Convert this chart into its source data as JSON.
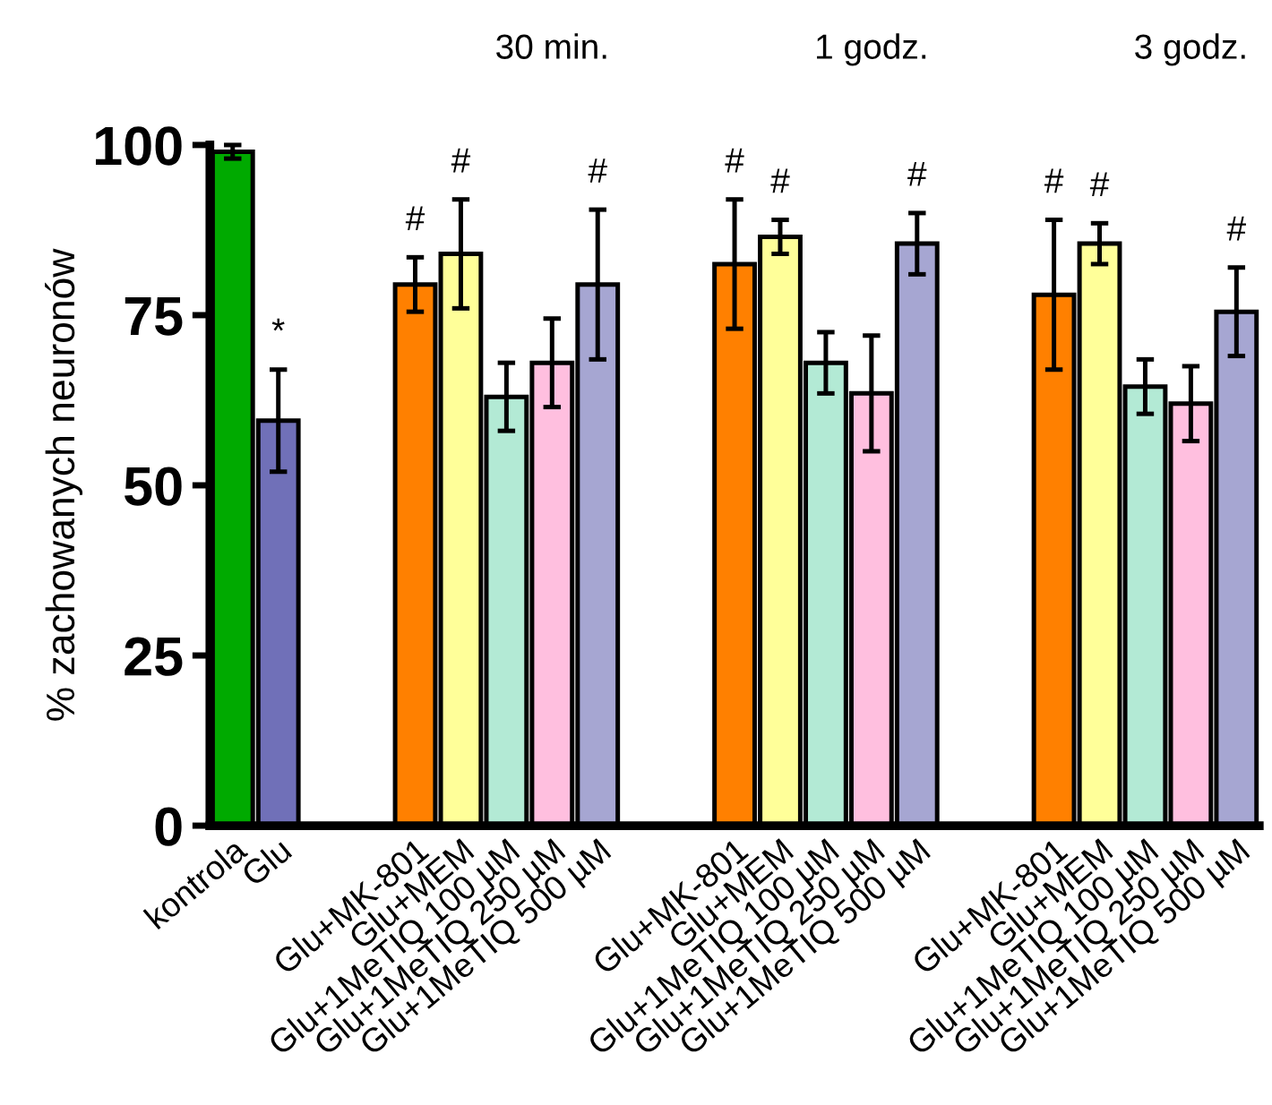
{
  "chart_data": {
    "type": "bar",
    "ylabel": "% zachowanych neuronów",
    "categories": [
      "kontrola",
      "Glu",
      null,
      null,
      "Glu+MK-801",
      "Glu+MEM",
      "Glu+1MeTIQ 100 µM",
      "Glu+1MeTIQ 250 µM",
      "Glu+1MeTIQ 500 µM",
      null,
      null,
      "Glu+MK-801",
      "Glu+MEM",
      "Glu+1MeTIQ 100 µM",
      "Glu+1MeTIQ 250 µM",
      "Glu+1MeTIQ 500 µM",
      null,
      null,
      "Glu+MK-801",
      "Glu+MEM",
      "Glu+1MeTIQ 100 µM",
      "Glu+1MeTIQ 250 µM",
      "Glu+1MeTIQ 500 µM"
    ],
    "values": [
      99,
      59.5,
      null,
      null,
      79.5,
      84,
      63,
      68,
      79.5,
      null,
      null,
      82.5,
      86.5,
      68,
      63.5,
      85.5,
      null,
      null,
      78,
      85.5,
      64.5,
      62,
      75.5
    ],
    "errors": [
      1,
      7.5,
      null,
      null,
      4,
      8,
      5,
      6.5,
      11,
      null,
      null,
      9.5,
      2.5,
      4.5,
      8.5,
      4.5,
      null,
      null,
      11,
      3,
      4,
      5.5,
      6.5
    ],
    "colors": [
      "#00aa00",
      "#7070b8",
      null,
      null,
      "#ff8000",
      "#ffff99",
      "#b3ead5",
      "#ffbfdf",
      "#a6a6d2",
      null,
      null,
      "#ff8000",
      "#ffff99",
      "#b3ead5",
      "#ffbfdf",
      "#a6a6d2",
      null,
      null,
      "#ff8000",
      "#ffff99",
      "#b3ead5",
      "#ffbfdf",
      "#a6a6d2"
    ],
    "value_labels": [
      null,
      "*",
      null,
      null,
      "#",
      "#",
      null,
      null,
      "#",
      null,
      null,
      "#",
      "#",
      null,
      null,
      "#",
      null,
      null,
      "#",
      "#",
      null,
      null,
      "#"
    ],
    "annotations": [
      "30 min.",
      "1 godz.",
      "3 godz."
    ],
    "ylim": [
      0,
      100
    ],
    "yticks": [
      0,
      25,
      50,
      75,
      100
    ],
    "grid": false,
    "legend": false
  }
}
